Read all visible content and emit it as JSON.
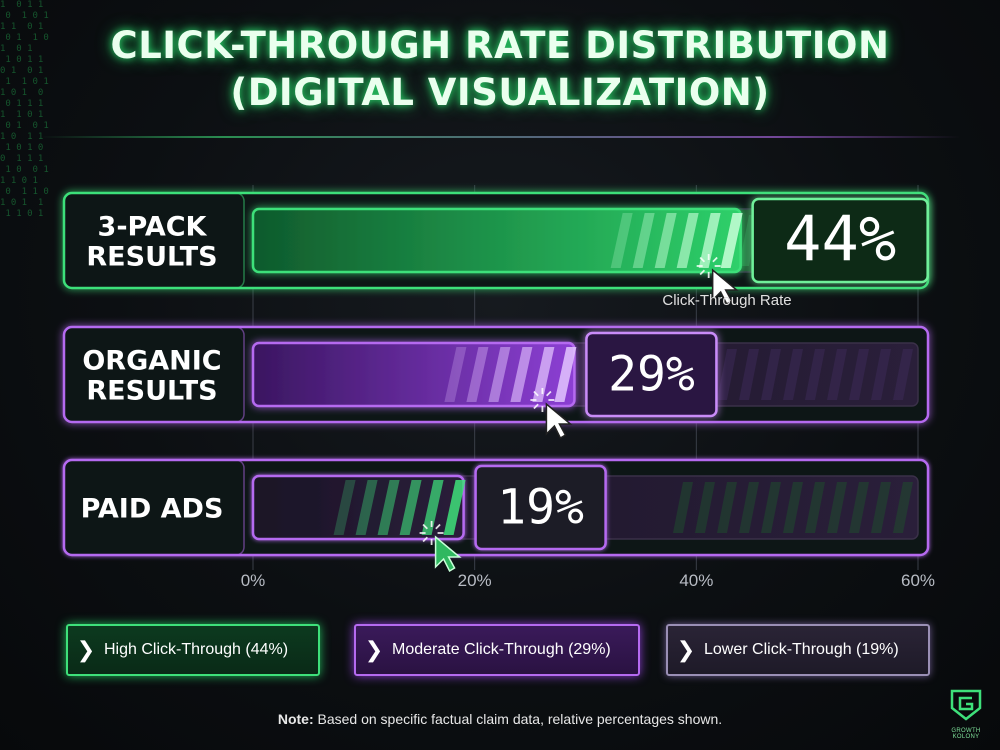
{
  "title": {
    "line1": "CLICK-THROUGH RATE DISTRIBUTION",
    "line2": "(DIGITAL VISUALIZATION)"
  },
  "chart_data": {
    "type": "bar",
    "orientation": "horizontal",
    "categories": [
      "3-PACK RESULTS",
      "ORGANIC RESULTS",
      "PAID ADS"
    ],
    "category_lines": [
      [
        "3-PACK",
        "RESULTS"
      ],
      [
        "ORGANIC",
        "RESULTS"
      ],
      [
        "PAID ADS"
      ]
    ],
    "values": [
      44,
      29,
      19
    ],
    "value_labels": [
      "44%",
      "29%",
      "19%"
    ],
    "value_caption": "Click-Through Rate",
    "x_ticks": [
      "0%",
      "20%",
      "40%",
      "60%"
    ],
    "tick_values": [
      0,
      20,
      40,
      60
    ],
    "xlim": [
      0,
      60
    ],
    "grid": true,
    "colors": [
      "#3ee07a",
      "#b56af0",
      "#2fb860"
    ]
  },
  "legend": [
    {
      "label": "High Click-Through (44%)",
      "color": "#3ee07a"
    },
    {
      "label": "Moderate Click-Through (29%)",
      "color": "#b56af0"
    },
    {
      "label": "Lower Click-Through (19%)",
      "color": "#9a8fb5"
    }
  ],
  "note": {
    "bold": "Note:",
    "text": " Based on specific factual claim data, relative percentages shown."
  },
  "logo": {
    "text": "GROWTH KOLONY",
    "icon": "g-shield-icon"
  },
  "icons": {
    "cursor": "mouse-pointer-icon",
    "legend_marker": "chevron-right-icon"
  }
}
